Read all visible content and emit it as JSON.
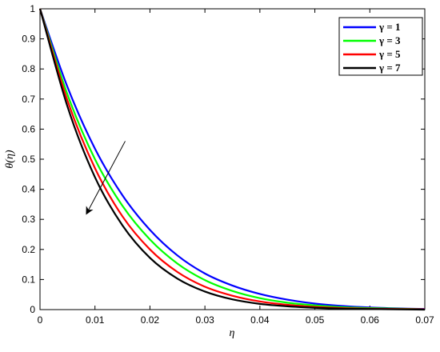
{
  "chart_data": {
    "type": "line",
    "xlabel": "η",
    "ylabel": "θ(η)",
    "xlim": [
      0,
      0.07
    ],
    "ylim": [
      0,
      1
    ],
    "xticks": [
      "0",
      "0.01",
      "0.02",
      "0.03",
      "0.04",
      "0.05",
      "0.06",
      "0.07"
    ],
    "yticks": [
      "0",
      "0.1",
      "0.2",
      "0.3",
      "0.4",
      "0.5",
      "0.6",
      "0.7",
      "0.8",
      "0.9",
      "1"
    ],
    "legend_position": "top-right",
    "grid": false,
    "x": [
      0,
      0.005,
      0.01,
      0.015,
      0.02,
      0.025,
      0.03,
      0.035,
      0.04,
      0.045,
      0.05,
      0.055,
      0.06,
      0.065,
      0.07
    ],
    "series": [
      {
        "name": "γ =  1",
        "color": "#0000ff",
        "values": [
          1.0,
          0.74,
          0.535,
          0.38,
          0.265,
          0.18,
          0.12,
          0.08,
          0.052,
          0.033,
          0.02,
          0.012,
          0.007,
          0.004,
          0.002
        ]
      },
      {
        "name": "γ =  3",
        "color": "#00ff00",
        "values": [
          1.0,
          0.715,
          0.5,
          0.345,
          0.233,
          0.153,
          0.098,
          0.062,
          0.038,
          0.023,
          0.014,
          0.008,
          0.005,
          0.003,
          0.001
        ]
      },
      {
        "name": "γ =  5",
        "color": "#ff0000",
        "values": [
          1.0,
          0.695,
          0.47,
          0.31,
          0.2,
          0.125,
          0.076,
          0.046,
          0.027,
          0.016,
          0.009,
          0.005,
          0.003,
          0.002,
          0.001
        ]
      },
      {
        "name": "γ = 7",
        "color": "#000000",
        "values": [
          1.0,
          0.675,
          0.44,
          0.28,
          0.172,
          0.103,
          0.06,
          0.034,
          0.019,
          0.011,
          0.006,
          0.003,
          0.002,
          0.001,
          0.0
        ]
      }
    ],
    "annotation": {
      "type": "arrow",
      "from": [
        0.0155,
        0.56
      ],
      "to": [
        0.0085,
        0.32
      ]
    }
  }
}
